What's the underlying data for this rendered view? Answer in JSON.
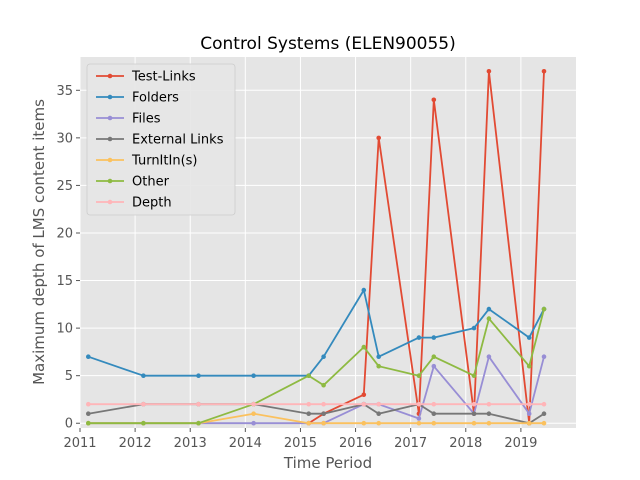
{
  "chart_data": {
    "type": "line",
    "title": "Control Systems (ELEN90055)",
    "xlabel": "Time Period",
    "ylabel": "Maximum depth of LMS content items",
    "xlim": [
      2011,
      2020
    ],
    "ylim": [
      -0.5,
      38.5
    ],
    "xticks": [
      2011,
      2012,
      2013,
      2014,
      2015,
      2016,
      2017,
      2018,
      2019
    ],
    "yticks": [
      0,
      5,
      10,
      15,
      20,
      25,
      30,
      35
    ],
    "grid": true,
    "legend_position": "top-left",
    "series": [
      {
        "name": "Test-Links",
        "color": "#E24A33",
        "x": [
          2015.15,
          2015.42,
          2016.15,
          2016.42,
          2017.15,
          2017.42,
          2018.15,
          2018.42,
          2019.15,
          2019.42
        ],
        "y": [
          0,
          1,
          3,
          30,
          1,
          34,
          1,
          37,
          0,
          37
        ]
      },
      {
        "name": "Folders",
        "color": "#348ABD",
        "x": [
          2011.15,
          2012.15,
          2013.15,
          2014.15,
          2015.15,
          2015.42,
          2016.15,
          2016.42,
          2017.15,
          2017.42,
          2018.15,
          2018.42,
          2019.15,
          2019.42
        ],
        "y": [
          7,
          5,
          5,
          5,
          5,
          7,
          14,
          7,
          9,
          9,
          10,
          12,
          9,
          12
        ]
      },
      {
        "name": "Files",
        "color": "#988ED5",
        "x": [
          2011.15,
          2012.15,
          2013.15,
          2014.15,
          2015.15,
          2015.42,
          2016.15,
          2016.42,
          2017.15,
          2017.42,
          2018.15,
          2018.42,
          2019.15,
          2019.42
        ],
        "y": [
          0,
          0,
          0,
          0,
          0,
          0,
          2,
          2,
          0.5,
          6,
          1,
          7,
          1,
          7
        ]
      },
      {
        "name": "External Links",
        "color": "#777777",
        "x": [
          2011.15,
          2012.15,
          2013.15,
          2014.15,
          2015.15,
          2015.42,
          2016.15,
          2016.42,
          2017.15,
          2017.42,
          2018.15,
          2018.42,
          2019.15,
          2019.42
        ],
        "y": [
          1,
          2,
          2,
          2,
          1,
          1,
          2,
          1,
          2,
          1,
          1,
          1,
          0,
          1
        ]
      },
      {
        "name": "TurnItIn(s)",
        "color": "#FBC15E",
        "x": [
          2011.15,
          2012.15,
          2013.15,
          2014.15,
          2015.15,
          2015.42,
          2016.15,
          2016.42,
          2017.15,
          2017.42,
          2018.15,
          2018.42,
          2019.15,
          2019.42
        ],
        "y": [
          0,
          0,
          0,
          1,
          0,
          0,
          0,
          0,
          0,
          0,
          0,
          0,
          0,
          0
        ]
      },
      {
        "name": "Other",
        "color": "#8EBA42",
        "x": [
          2011.15,
          2012.15,
          2013.15,
          2014.15,
          2015.15,
          2015.42,
          2016.15,
          2016.42,
          2017.15,
          2017.42,
          2018.15,
          2018.42,
          2019.15,
          2019.42
        ],
        "y": [
          0,
          0,
          0,
          2,
          5,
          4,
          8,
          6,
          5,
          7,
          5,
          11,
          6,
          12
        ]
      },
      {
        "name": "Depth",
        "color": "#FFB5B8",
        "x": [
          2011.15,
          2012.15,
          2013.15,
          2014.15,
          2015.15,
          2015.42,
          2016.15,
          2016.42,
          2017.15,
          2017.42,
          2018.15,
          2018.42,
          2019.15,
          2019.42
        ],
        "y": [
          2,
          2,
          2,
          2,
          2,
          2,
          2,
          2,
          2,
          2,
          2,
          2,
          2,
          2
        ]
      }
    ]
  }
}
